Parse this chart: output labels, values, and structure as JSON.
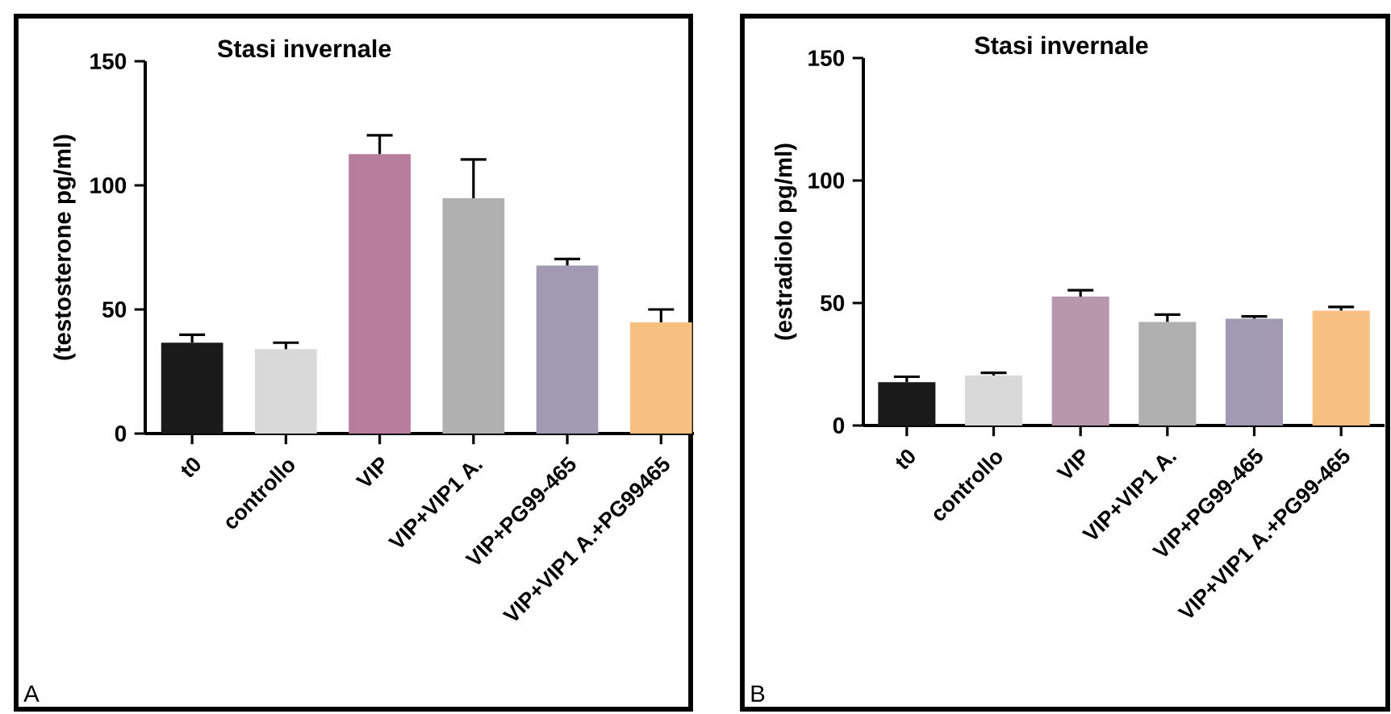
{
  "chart_data": [
    {
      "type": "bar",
      "title": "Stasi invernale",
      "ylabel": "(testosterone pg/ml)",
      "categories": [
        "t0",
        "controllo",
        "VIP",
        "VIP+VIP1 A.",
        "VIP+PG99-465",
        "VIP+VIP1 A.+PG99465"
      ],
      "values": [
        36.6,
        34,
        112.6,
        94.8,
        67.7,
        44.8
      ],
      "errors": [
        3.2,
        2.6,
        7.6,
        15.6,
        2.6,
        5.2
      ],
      "colors": [
        "#1a1a1a",
        "#d9d9d9",
        "#b87c9c",
        "#b0b0b0",
        "#a29ab3",
        "#f8c080"
      ],
      "ylim": [
        0,
        150
      ],
      "yticks": [
        0,
        50,
        100,
        150
      ],
      "annotations": [
        "A"
      ]
    },
    {
      "type": "bar",
      "title": "Stasi invernale",
      "ylabel": "(estradiolo pg/ml)",
      "categories": [
        "t0",
        "controllo",
        "VIP",
        "VIP+VIP1 A.",
        "VIP+PG99-465",
        "VIP+VIP1 A.+PG99-465"
      ],
      "values": [
        17.7,
        20.4,
        52.6,
        42.3,
        43.6,
        46.9
      ],
      "errors": [
        2.2,
        1.1,
        2.6,
        3,
        0.9,
        1.5
      ],
      "colors": [
        "#1a1a1a",
        "#d9d9d9",
        "#b896ab",
        "#b0b0b0",
        "#a29ab3",
        "#f8c080"
      ],
      "ylim": [
        0,
        150
      ],
      "yticks": [
        0,
        50,
        100,
        150
      ],
      "annotations": [
        "B"
      ]
    }
  ]
}
